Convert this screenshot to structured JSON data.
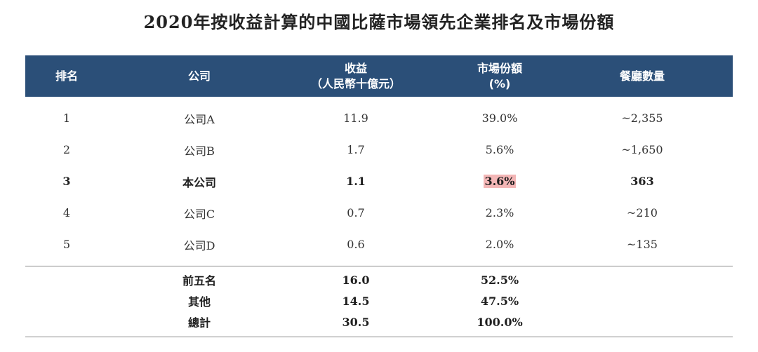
{
  "title": "2020年按收益計算的中國比薩市場領先企業排名及市場份額",
  "headers": {
    "rank": "排名",
    "company": "公司",
    "revenue_line1": "收益",
    "revenue_line2": "（人民幣十億元）",
    "share_line1": "市場份額",
    "share_line2": "(%)",
    "restaurants": "餐廳數量"
  },
  "rows": [
    {
      "rank": "1",
      "company": "公司A",
      "revenue": "11.9",
      "share": "39.0%",
      "restaurants": "~2,355"
    },
    {
      "rank": "2",
      "company": "公司B",
      "revenue": "1.7",
      "share": "5.6%",
      "restaurants": "~1,650"
    },
    {
      "rank": "3",
      "company": "本公司",
      "revenue": "1.1",
      "share": "3.6%",
      "restaurants": "363"
    },
    {
      "rank": "4",
      "company": "公司C",
      "revenue": "0.7",
      "share": "2.3%",
      "restaurants": "~210"
    },
    {
      "rank": "5",
      "company": "公司D",
      "revenue": "0.6",
      "share": "2.0%",
      "restaurants": "~135"
    }
  ],
  "totals": [
    {
      "label": "前五名",
      "revenue": "16.0",
      "share": "52.5%"
    },
    {
      "label": "其他",
      "revenue": "14.5",
      "share": "47.5%"
    },
    {
      "label": "總計",
      "revenue": "30.5",
      "share": "100.0%"
    }
  ],
  "colors": {
    "header_bg": "#2b4f78",
    "highlight": "#f3b6b6"
  }
}
